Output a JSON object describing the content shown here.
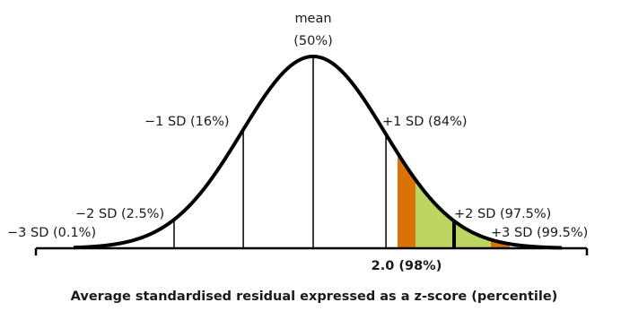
{
  "diagram": {
    "labels": {
      "mean_line1": "mean",
      "mean_line2": "(50%)",
      "minus1": "−1 SD (16%)",
      "plus1": "+1 SD (84%)",
      "minus2": "−2 SD (2.5%)",
      "plus2": "+2 SD (97.5%)",
      "minus3": "−3 SD (0.1%)",
      "plus3": "+3 SD (99.5%)"
    },
    "marker": {
      "z": 2.0,
      "label": "2.0 (98%)"
    },
    "band_colors": {
      "orange": "#d97308",
      "green": "#bcd460"
    },
    "caption": "Average standardised residual expressed as a z-score (percentile)"
  }
}
